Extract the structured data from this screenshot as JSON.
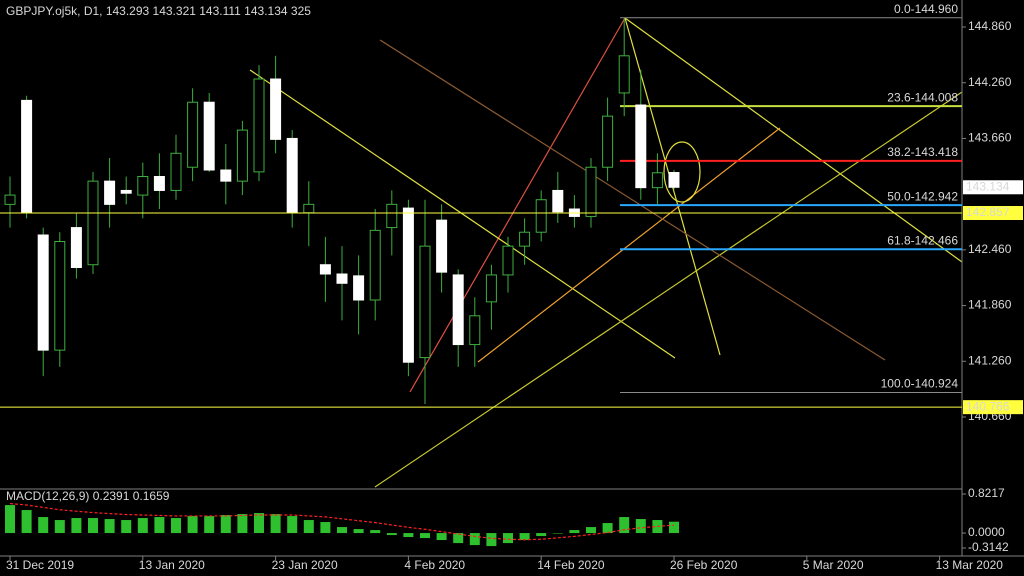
{
  "chart_data": [
    {
      "type": "candlestick",
      "title": "GBPJPY.oj5k, D1, 143.293 143.321 143.111 143.134 325",
      "categories": [
        "31 Dec 2019",
        null,
        null,
        null,
        null,
        null,
        null,
        null,
        "13 Jan 2020",
        null,
        null,
        null,
        null,
        null,
        null,
        null,
        "23 Jan 2020",
        null,
        null,
        null,
        null,
        null,
        null,
        null,
        "4 Feb 2020",
        null,
        null,
        null,
        null,
        null,
        null,
        null,
        "14 Feb 2020",
        null,
        null,
        null,
        null,
        null,
        null,
        null,
        "26 Feb 2020",
        null,
        null,
        null,
        null,
        null,
        null,
        null,
        "5 Mar 2020",
        null,
        null,
        null,
        null,
        null,
        null,
        null,
        "13 Mar 2020"
      ],
      "open": [
        142.95,
        144.07,
        142.62,
        141.38,
        142.7,
        142.3,
        143.2,
        143.1,
        143.05,
        143.25,
        143.1,
        143.35,
        144.05,
        143.32,
        143.2,
        143.3,
        144.3,
        143.66,
        142.86,
        142.3,
        142.2,
        142.18,
        141.92,
        142.7,
        142.91,
        141.3,
        142.78,
        142.19,
        141.44,
        141.9,
        142.19,
        142.5,
        142.65,
        143.1,
        142.9,
        142.82,
        143.35,
        144.15,
        144.02,
        143.13,
        143.293,
        null,
        null,
        null,
        null,
        null,
        null,
        null,
        null,
        null,
        null,
        null,
        null,
        null,
        null,
        null,
        null
      ],
      "high": [
        143.25,
        144.12,
        142.7,
        142.65,
        142.85,
        143.3,
        143.45,
        143.25,
        143.4,
        143.5,
        143.7,
        144.2,
        144.15,
        143.6,
        143.85,
        144.45,
        144.55,
        143.75,
        143.2,
        142.6,
        142.5,
        142.4,
        142.9,
        143.1,
        143.0,
        143.0,
        142.95,
        142.25,
        141.95,
        142.3,
        142.6,
        142.8,
        143.1,
        143.3,
        143.05,
        143.45,
        144.1,
        144.95,
        144.4,
        143.5,
        143.321,
        null,
        null,
        null,
        null,
        null,
        null,
        null,
        null,
        null,
        null,
        null,
        null,
        null,
        null,
        null,
        null
      ],
      "low": [
        142.7,
        142.8,
        141.1,
        141.2,
        142.15,
        142.2,
        142.7,
        142.95,
        142.8,
        142.9,
        143.0,
        143.2,
        143.3,
        142.95,
        143.05,
        143.2,
        143.5,
        142.7,
        142.5,
        141.9,
        141.7,
        141.55,
        141.7,
        142.4,
        141.1,
        140.8,
        142.0,
        141.2,
        141.2,
        141.6,
        142.0,
        142.3,
        142.55,
        142.75,
        142.7,
        142.7,
        143.2,
        143.9,
        143.0,
        142.95,
        143.111,
        null,
        null,
        null,
        null,
        null,
        null,
        null,
        null,
        null,
        null,
        null,
        null,
        null,
        null,
        null,
        null
      ],
      "close": [
        143.05,
        142.86,
        141.38,
        142.55,
        142.27,
        143.2,
        142.95,
        143.07,
        143.25,
        143.1,
        143.5,
        144.05,
        143.32,
        143.2,
        143.75,
        144.3,
        143.65,
        142.86,
        142.95,
        142.2,
        142.1,
        141.92,
        142.67,
        142.95,
        141.25,
        142.5,
        142.22,
        141.44,
        141.75,
        142.19,
        142.5,
        142.65,
        143.0,
        142.87,
        142.82,
        143.35,
        143.9,
        144.55,
        143.13,
        143.29,
        143.134,
        null,
        null,
        null,
        null,
        null,
        null,
        null,
        null,
        null,
        null,
        null,
        null,
        null,
        null,
        null,
        null
      ],
      "up_color": "#000000",
      "down_color": "#ffffff",
      "wick_color": "#3fae3f",
      "ylim": [
        139.906,
        145.151
      ],
      "yticks": [
        {
          "value": 144.86,
          "label": "144.860"
        },
        {
          "value": 144.26,
          "label": "144.260"
        },
        {
          "value": 143.66,
          "label": "143.660"
        },
        {
          "value": 142.46,
          "label": "142.460"
        },
        {
          "value": 141.86,
          "label": "141.860"
        },
        {
          "value": 141.26,
          "label": "141.260"
        },
        {
          "value": 140.66,
          "label": "140.660"
        }
      ],
      "levels": [
        {
          "value": 144.96,
          "label": "0.0-144.960",
          "color": "#8a8a8a"
        },
        {
          "value": 144.008,
          "label": "23.6-144.008",
          "color": "#c8e040"
        },
        {
          "value": 143.418,
          "label": "38.2-143.418",
          "color": "#ff2020"
        },
        {
          "value": 142.942,
          "label": "50.0-142.942",
          "color": "#2aa8ff"
        },
        {
          "value": 142.466,
          "label": "61.8-142.466",
          "color": "#2aa8ff"
        },
        {
          "value": 140.924,
          "label": "100.0-140.924",
          "color": "#8a8a8a"
        }
      ],
      "level_text_color": "#7fd07f",
      "price_labels": [
        {
          "value": 143.134,
          "background": "#ffffff"
        },
        {
          "value": 142.857,
          "background": "#ffff40"
        },
        {
          "value": 140.766,
          "background": "#ffff40"
        }
      ]
    },
    {
      "type": "macd",
      "title": "MACD(12,26,9) 0.2391 0.1659",
      "series": [
        {
          "name": "MACD",
          "color": "#2fc02f",
          "values": [
            0.589,
            0.484,
            0.337,
            0.274,
            0.316,
            0.316,
            0.295,
            0.274,
            0.316,
            0.337,
            0.316,
            0.358,
            0.358,
            0.379,
            0.4,
            0.421,
            0.4,
            0.358,
            0.274,
            0.232,
            0.126,
            0.084,
            0.063,
            -0.042,
            -0.084,
            -0.105,
            -0.147,
            -0.211,
            -0.253,
            -0.274,
            -0.211,
            -0.147,
            -0.063,
            0,
            0.063,
            0.126,
            0.211,
            0.337,
            0.295,
            0.274,
            0.2391,
            null,
            null,
            null,
            null,
            null,
            null,
            null,
            null,
            null,
            null,
            null,
            null,
            null,
            null,
            null,
            null
          ]
        },
        {
          "name": "Signal",
          "color": "#ff2020",
          "values": [
            0.62,
            0.59,
            0.54,
            0.49,
            0.46,
            0.43,
            0.41,
            0.39,
            0.38,
            0.37,
            0.36,
            0.36,
            0.36,
            0.36,
            0.37,
            0.38,
            0.38,
            0.38,
            0.36,
            0.34,
            0.3,
            0.26,
            0.22,
            0.17,
            0.12,
            0.08,
            0.03,
            -0.02,
            -0.07,
            -0.11,
            -0.13,
            -0.14,
            -0.13,
            -0.1,
            -0.07,
            -0.03,
            0.01,
            0.07,
            0.11,
            0.14,
            0.1659,
            null,
            null,
            null,
            null,
            null,
            null,
            null,
            null,
            null,
            null,
            null,
            null,
            null,
            null,
            null,
            null
          ]
        }
      ],
      "ylim": [
        -0.3142,
        0.8217
      ],
      "yticks": [
        0.8217,
        {
          "value": 0,
          "label": "0.0000"
        },
        -0.3142
      ]
    }
  ]
}
